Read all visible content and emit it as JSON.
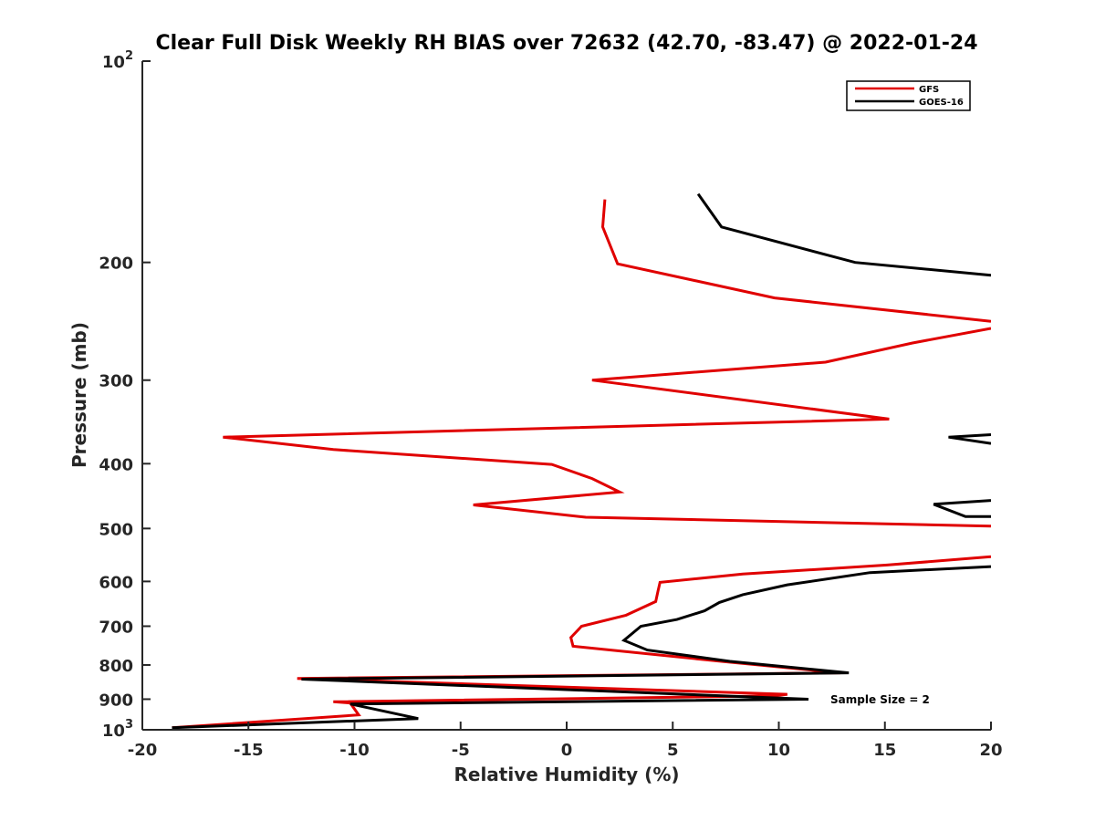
{
  "chart_data": {
    "type": "line",
    "title": "Clear Full Disk Weekly RH BIAS over 72632 (42.70, -83.47) @ 2022-01-24",
    "xlabel": "Relative Humidity (%)",
    "ylabel": "Pressure (mb)",
    "xlim": [
      -20,
      20
    ],
    "ylim": [
      100,
      1000
    ],
    "yscale": "log",
    "y_reversed": true,
    "grid": false,
    "x_ticks": [
      -20,
      -15,
      -10,
      -5,
      0,
      5,
      10,
      15,
      20
    ],
    "x_tick_labels": [
      "-20",
      "-15",
      "-10",
      "-5",
      "0",
      "5",
      "10",
      "15",
      "20"
    ],
    "y_ticks": [
      100,
      200,
      300,
      400,
      500,
      600,
      700,
      800,
      900,
      1000
    ],
    "y_tick_labels": [
      "10^2",
      "200",
      "300",
      "400",
      "500",
      "600",
      "700",
      "800",
      "900",
      "10^3"
    ],
    "legend": {
      "placement": "top-right",
      "entries": [
        "GFS",
        "GOES-16"
      ]
    },
    "annotation": "Sample Size = 2",
    "series": [
      {
        "name": "GFS",
        "color": "#e00000",
        "segments": [
          [
            [
              1.8,
              161
            ],
            [
              1.7,
              177
            ],
            [
              2.4,
              201
            ],
            [
              9.8,
              226
            ],
            [
              20.0,
              245
            ]
          ],
          [
            [
              20.0,
              251
            ],
            [
              16.3,
              264
            ],
            [
              12.2,
              282
            ],
            [
              1.2,
              300
            ],
            [
              15.2,
              343
            ],
            [
              -16.2,
              365
            ],
            [
              -11.0,
              381
            ],
            [
              -0.7,
              401
            ],
            [
              1.2,
              421
            ],
            [
              2.5,
              441
            ],
            [
              -4.4,
              461
            ],
            [
              0.9,
              481
            ],
            [
              20.0,
              496
            ]
          ],
          [
            [
              20.0,
              551
            ],
            [
              15.1,
              567
            ],
            [
              8.3,
              585
            ],
            [
              4.4,
              602
            ],
            [
              4.3,
              621
            ],
            [
              4.2,
              643
            ],
            [
              2.8,
              674
            ],
            [
              0.7,
              700
            ],
            [
              0.2,
              728
            ],
            [
              0.3,
              750
            ],
            [
              7.3,
              790
            ],
            [
              12.9,
              822
            ],
            [
              -12.7,
              838
            ],
            [
              10.4,
              885
            ],
            [
              9.8,
              890
            ],
            [
              -11.0,
              908
            ],
            [
              -10.2,
              912
            ],
            [
              -9.8,
              950
            ],
            [
              -18.6,
              993
            ]
          ]
        ]
      },
      {
        "name": "GOES-16",
        "color": "#000000",
        "segments": [
          [
            [
              6.2,
              158
            ],
            [
              7.3,
              177
            ],
            [
              13.6,
              200
            ],
            [
              20.0,
              209
            ]
          ],
          [
            [
              20.0,
              362
            ],
            [
              18.0,
              365
            ],
            [
              20.0,
              373
            ]
          ],
          [
            [
              20.0,
              454
            ],
            [
              17.3,
              460
            ],
            [
              18.8,
              480
            ],
            [
              20.0,
              480
            ]
          ],
          [
            [
              20.0,
              570
            ],
            [
              14.3,
              582
            ],
            [
              10.4,
              607
            ],
            [
              8.3,
              628
            ],
            [
              7.2,
              645
            ],
            [
              6.5,
              664
            ],
            [
              5.2,
              684
            ],
            [
              3.5,
              700
            ],
            [
              2.7,
              735
            ],
            [
              3.8,
              760
            ],
            [
              7.7,
              790
            ],
            [
              13.3,
              822
            ],
            [
              -12.5,
              840
            ],
            [
              11.4,
              900
            ],
            [
              -10.2,
              915
            ],
            [
              -7.0,
              962
            ],
            [
              -18.6,
              993
            ]
          ]
        ]
      }
    ]
  }
}
